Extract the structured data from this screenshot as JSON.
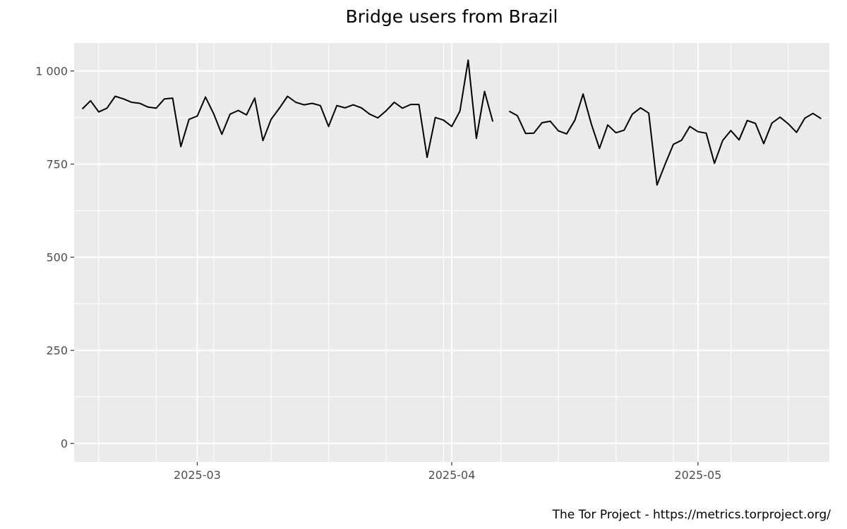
{
  "chart_data": {
    "type": "line",
    "title": "Bridge users from Brazil",
    "xlabel": "",
    "ylabel": "",
    "caption": "The Tor Project - https://metrics.torproject.org/",
    "x_start": "2025-02-15",
    "x_end": "2025-05-14",
    "xlim": [
      "2025-02-14",
      "2025-05-17"
    ],
    "ylim": [
      -50,
      1075
    ],
    "y_ticks": [
      0,
      250,
      500,
      750,
      1000
    ],
    "y_tick_labels": [
      "0",
      "250",
      "500",
      "750",
      "1 000"
    ],
    "x_ticks": [
      "2025-03-01",
      "2025-04-01",
      "2025-05-01"
    ],
    "x_tick_labels": [
      "2025-03",
      "2025-04",
      "2025-05"
    ],
    "grid": true,
    "colors": {
      "panel": "#ebebeb",
      "grid": "#ffffff",
      "line": "#000000"
    },
    "series": [
      {
        "values": [
          898,
          920,
          890,
          900,
          932,
          925,
          916,
          913,
          903,
          900,
          925,
          927,
          797,
          870,
          879,
          930,
          885,
          830,
          884,
          894,
          882,
          927,
          813,
          870,
          900,
          932,
          916,
          909,
          913,
          907,
          851,
          907,
          901,
          909,
          901,
          884,
          874,
          893,
          916,
          900,
          910,
          910,
          768,
          875,
          868,
          851,
          892,
          1029,
          819,
          945,
          864,
          null,
          892,
          880,
          832,
          833,
          861,
          865,
          839,
          831,
          868,
          938,
          858,
          792,
          855,
          834,
          841,
          884,
          901,
          887,
          694,
          750,
          803,
          814,
          851,
          837,
          833,
          752,
          813,
          840,
          815,
          867,
          859,
          805,
          860,
          876,
          858,
          835,
          873,
          886,
          872
        ]
      }
    ]
  }
}
